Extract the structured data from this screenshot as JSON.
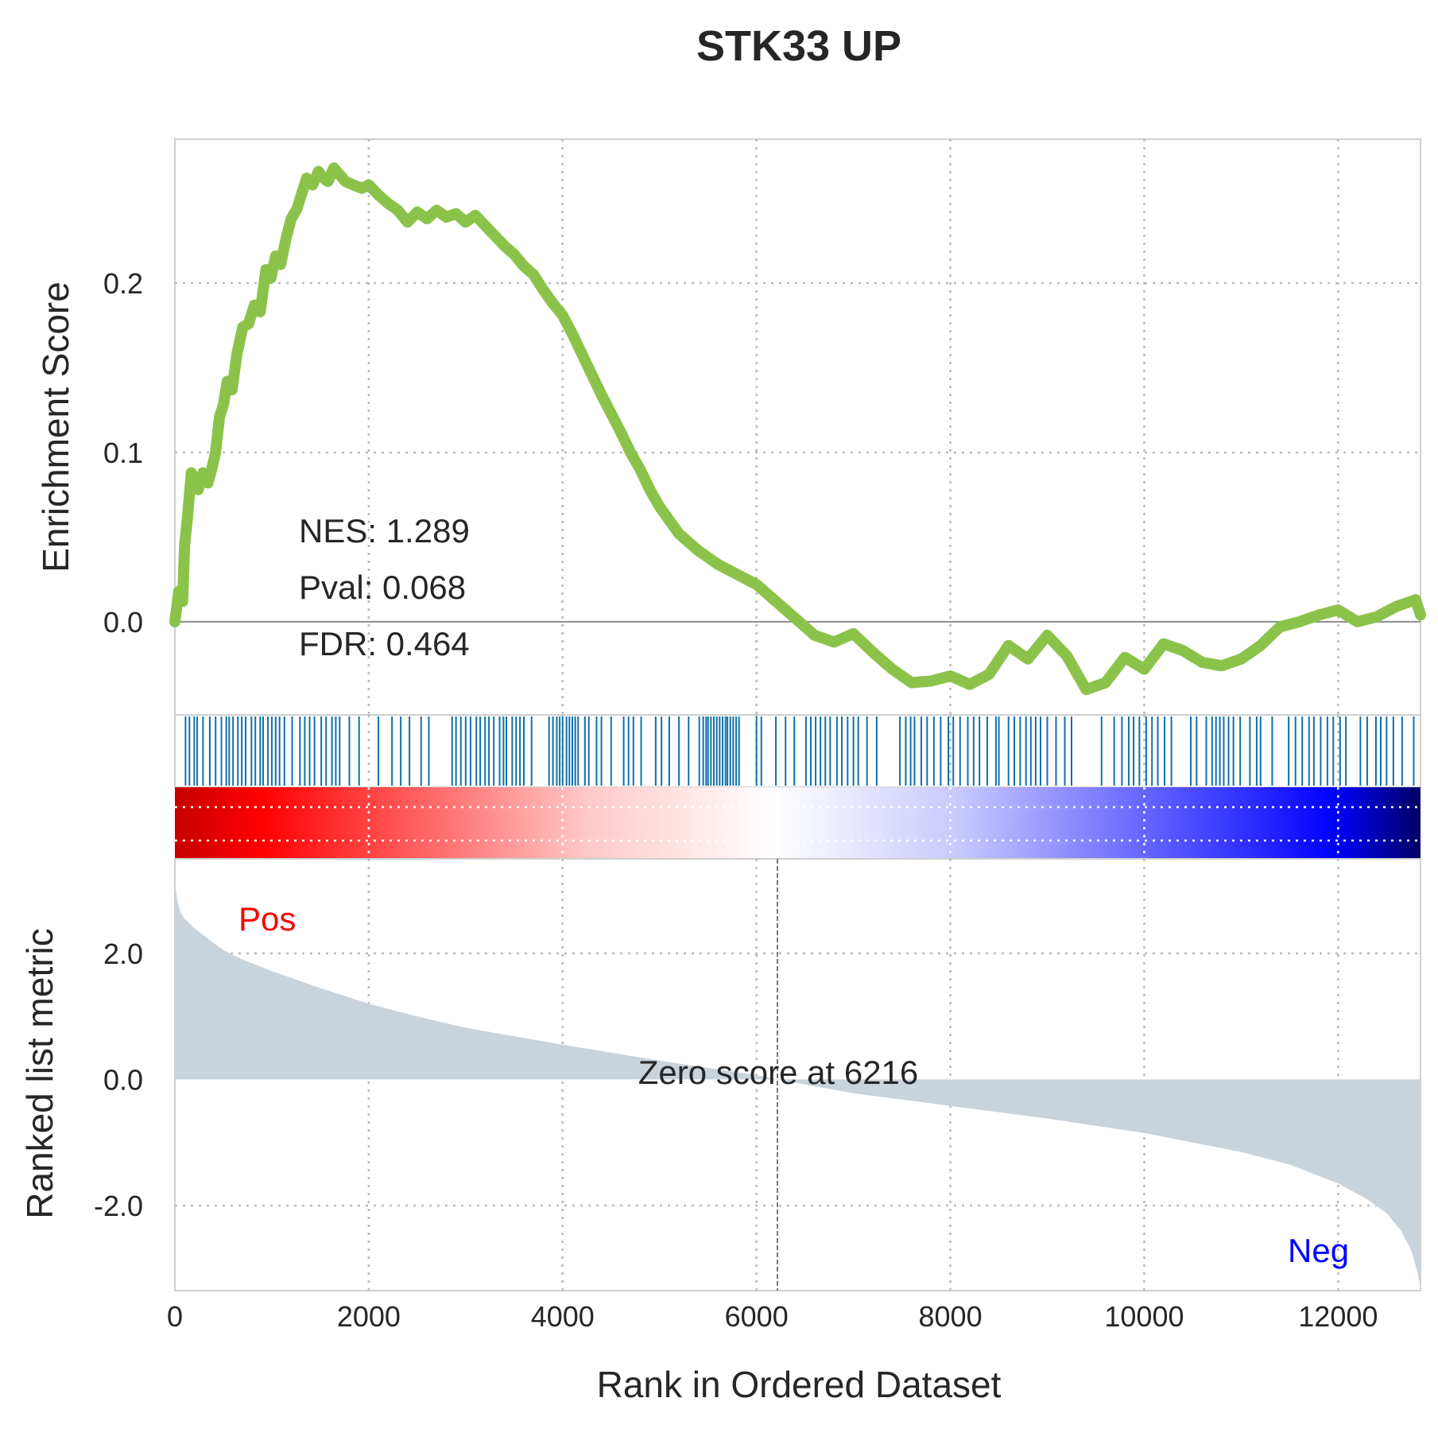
{
  "chart_data": {
    "type": "line",
    "title": "STK33 UP",
    "xlabel": "Rank in Ordered Dataset",
    "xlim": [
      0,
      12850
    ],
    "xticks": [
      0,
      2000,
      4000,
      6000,
      8000,
      10000,
      12000
    ],
    "grid": true,
    "enrichment": {
      "ylabel": "Enrichment Score",
      "ylim": [
        -0.055,
        0.285
      ],
      "yticks": [
        "0.0",
        "0.1",
        "0.2"
      ],
      "ytick_values": [
        0.0,
        0.1,
        0.2
      ],
      "color": "#8bc34a",
      "x": [
        0,
        40,
        80,
        100,
        130,
        170,
        200,
        240,
        290,
        340,
        380,
        420,
        460,
        500,
        540,
        590,
        640,
        700,
        760,
        820,
        880,
        940,
        990,
        1040,
        1090,
        1150,
        1200,
        1260,
        1310,
        1360,
        1420,
        1480,
        1530,
        1580,
        1640,
        1700,
        1760,
        1840,
        1930,
        2000,
        2100,
        2200,
        2300,
        2400,
        2500,
        2600,
        2700,
        2800,
        2900,
        3000,
        3100,
        3200,
        3300,
        3400,
        3500,
        3600,
        3700,
        3800,
        3900,
        4000,
        4100,
        4200,
        4300,
        4400,
        4500,
        4600,
        4700,
        4800,
        4900,
        5000,
        5200,
        5400,
        5600,
        5800,
        6000,
        6200,
        6400,
        6600,
        6800,
        7000,
        7200,
        7400,
        7600,
        7800,
        8000,
        8200,
        8400,
        8600,
        8800,
        9000,
        9200,
        9400,
        9600,
        9800,
        10000,
        10200,
        10400,
        10600,
        10800,
        11000,
        11200,
        11400,
        11600,
        11800,
        12000,
        12200,
        12400,
        12600,
        12800,
        12850
      ],
      "values": [
        0.0,
        0.018,
        0.012,
        0.045,
        0.062,
        0.088,
        0.083,
        0.078,
        0.088,
        0.082,
        0.09,
        0.1,
        0.121,
        0.128,
        0.142,
        0.137,
        0.158,
        0.174,
        0.176,
        0.187,
        0.183,
        0.208,
        0.203,
        0.216,
        0.211,
        0.227,
        0.238,
        0.244,
        0.253,
        0.262,
        0.258,
        0.266,
        0.262,
        0.26,
        0.268,
        0.264,
        0.26,
        0.258,
        0.256,
        0.258,
        0.252,
        0.247,
        0.243,
        0.236,
        0.242,
        0.238,
        0.243,
        0.239,
        0.241,
        0.236,
        0.24,
        0.234,
        0.228,
        0.222,
        0.217,
        0.21,
        0.205,
        0.196,
        0.188,
        0.181,
        0.17,
        0.158,
        0.146,
        0.134,
        0.123,
        0.112,
        0.1,
        0.09,
        0.078,
        0.068,
        0.052,
        0.042,
        0.034,
        0.028,
        0.022,
        0.012,
        0.002,
        -0.008,
        -0.012,
        -0.007,
        -0.018,
        -0.028,
        -0.036,
        -0.035,
        -0.032,
        -0.037,
        -0.031,
        -0.014,
        -0.022,
        -0.008,
        -0.02,
        -0.04,
        -0.036,
        -0.021,
        -0.028,
        -0.013,
        -0.017,
        -0.024,
        -0.026,
        -0.022,
        -0.014,
        -0.003,
        0.0,
        0.004,
        0.007,
        0.0,
        0.003,
        0.009,
        0.013,
        0.004
      ],
      "stats": [
        "NES: 1.289",
        "Pval: 0.068",
        "FDR: 0.464"
      ]
    },
    "hits": [
      110,
      150,
      200,
      230,
      290,
      360,
      420,
      480,
      530,
      560,
      600,
      650,
      690,
      730,
      790,
      830,
      880,
      910,
      960,
      1000,
      1040,
      1080,
      1130,
      1210,
      1290,
      1340,
      1390,
      1440,
      1510,
      1560,
      1620,
      1660,
      1700,
      1800,
      1900,
      2100,
      2240,
      2330,
      2420,
      2540,
      2620,
      2860,
      2900,
      2950,
      3000,
      3050,
      3110,
      3150,
      3200,
      3240,
      3290,
      3350,
      3390,
      3420,
      3480,
      3520,
      3560,
      3600,
      3680,
      3860,
      3900,
      3940,
      3970,
      4000,
      4040,
      4070,
      4100,
      4130,
      4160,
      4230,
      4270,
      4350,
      4400,
      4500,
      4630,
      4680,
      4730,
      4810,
      4960,
      5020,
      5100,
      5200,
      5300,
      5410,
      5450,
      5480,
      5500,
      5530,
      5560,
      5590,
      5620,
      5650,
      5680,
      5700,
      5730,
      5760,
      5790,
      5820,
      6000,
      6050,
      6200,
      6300,
      6390,
      6510,
      6560,
      6610,
      6660,
      6710,
      6760,
      6830,
      6880,
      6940,
      7000,
      7050,
      7140,
      7240,
      7480,
      7540,
      7590,
      7630,
      7700,
      7760,
      7830,
      7900,
      7980,
      8030,
      8100,
      8180,
      8240,
      8300,
      8380,
      8470,
      8500,
      8600,
      8660,
      8720,
      8780,
      8830,
      8880,
      8930,
      9000,
      9090,
      9180,
      9250,
      9560,
      9690,
      9770,
      9840,
      9890,
      9950,
      10020,
      10080,
      10140,
      10210,
      10280,
      10480,
      10540,
      10640,
      10700,
      10740,
      10780,
      10820,
      10870,
      10920,
      10990,
      11090,
      11160,
      11200,
      11320,
      11490,
      11560,
      11630,
      11700,
      11750,
      11820,
      11890,
      11950,
      12020,
      12080,
      12230,
      12300,
      12390,
      12440,
      12500,
      12570,
      12660,
      12780
    ],
    "hit_color": "#1170aa",
    "rank_metric": {
      "ylabel": "Ranked list metric",
      "ylim": [
        -3.35,
        3.5
      ],
      "yticks": [
        "2.0",
        "0.0",
        "-2.0"
      ],
      "ytick_values": [
        2.0,
        0.0,
        -2.0
      ],
      "fill_color": "#c9d3dc",
      "x": [
        0,
        10,
        30,
        60,
        100,
        200,
        300,
        500,
        700,
        1000,
        1500,
        2000,
        2500,
        3000,
        4000,
        5000,
        6000,
        6216,
        7000,
        8000,
        9000,
        10000,
        11000,
        11500,
        12000,
        12300,
        12500,
        12650,
        12750,
        12800,
        12830,
        12850
      ],
      "values": [
        3.4,
        3.0,
        2.8,
        2.65,
        2.55,
        2.4,
        2.28,
        2.05,
        1.9,
        1.72,
        1.45,
        1.2,
        1.0,
        0.82,
        0.55,
        0.3,
        0.07,
        0.0,
        -0.22,
        -0.42,
        -0.62,
        -0.85,
        -1.15,
        -1.35,
        -1.65,
        -1.9,
        -2.12,
        -2.4,
        -2.7,
        -2.95,
        -3.15,
        -3.3
      ],
      "zero_rank": 6216,
      "zero_label": "Zero score at 6216",
      "pos_label": "Pos",
      "neg_label": "Neg",
      "pos_color": "#ff0000",
      "neg_color": "#0000ff"
    },
    "colorbar": [
      "#c80000",
      "#ff0000",
      "#ffc8c8",
      "#ffffff",
      "#c8c8ff",
      "#0000ff",
      "#000064"
    ]
  }
}
